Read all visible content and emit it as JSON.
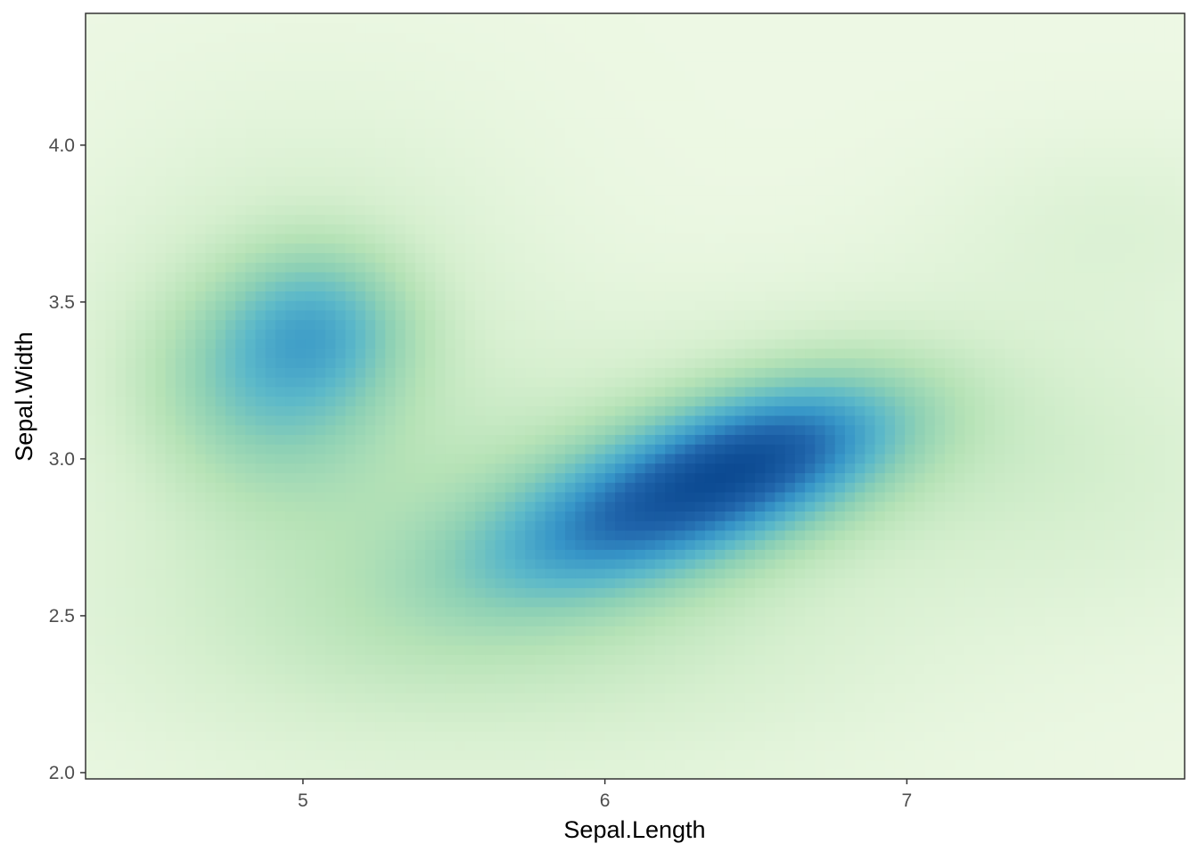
{
  "chart_data": {
    "type": "heatmap",
    "title": "",
    "xlabel": "Sepal.Length",
    "ylabel": "Sepal.Width",
    "xlim": [
      4.28,
      7.92
    ],
    "ylim": [
      1.98,
      4.42
    ],
    "x_ticks": [
      {
        "value": 5,
        "label": "5"
      },
      {
        "value": 6,
        "label": "6"
      },
      {
        "value": 7,
        "label": "7"
      }
    ],
    "y_ticks": [
      {
        "value": 2.0,
        "label": "2.0"
      },
      {
        "value": 2.5,
        "label": "2.5"
      },
      {
        "value": 3.0,
        "label": "3.0"
      },
      {
        "value": 3.5,
        "label": "3.5"
      },
      {
        "value": 4.0,
        "label": "4.0"
      }
    ],
    "grid": false,
    "legend": "none",
    "color_scale": [
      "#edf8e4",
      "#d6efcf",
      "#b5e2b6",
      "#8cd0b5",
      "#5bb8c9",
      "#3796c8",
      "#2166ac",
      "#0c4a92"
    ],
    "density_peaks": [
      {
        "x": 6.15,
        "y": 2.85,
        "level": 1.0
      },
      {
        "x": 6.55,
        "y": 3.05,
        "level": 0.9
      },
      {
        "x": 5.05,
        "y": 3.43,
        "level": 0.62
      },
      {
        "x": 4.75,
        "y": 3.15,
        "level": 0.38
      }
    ]
  }
}
